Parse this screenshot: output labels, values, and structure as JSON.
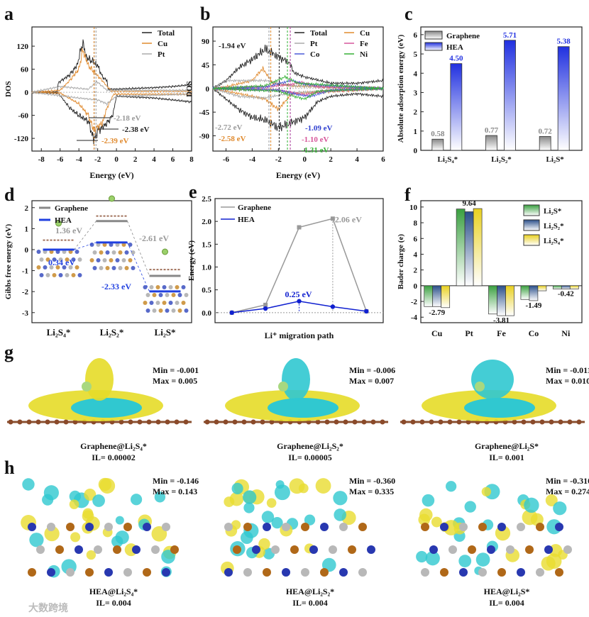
{
  "panel_letters": [
    "a",
    "b",
    "c",
    "d",
    "e",
    "f",
    "g",
    "h"
  ],
  "chart_data": [
    {
      "id": "a",
      "type": "line",
      "xlabel": "Energy (eV)",
      "ylabel": "DOS",
      "xlim": [
        -9,
        8
      ],
      "ylim": [
        -153,
        170
      ],
      "xticks": [
        -8,
        -6,
        -4,
        -2,
        0,
        2,
        4,
        6,
        8
      ],
      "yticks": [
        -120,
        -60,
        0,
        60,
        120
      ],
      "legend": [
        "Total",
        "Cu",
        "Pt"
      ],
      "legend_position": "top-right",
      "series": [
        {
          "name": "Total",
          "color": "#222222",
          "up": [
            [
              -9,
              0
            ],
            [
              -6.3,
              1
            ],
            [
              -6.2,
              25
            ],
            [
              -5,
              45
            ],
            [
              -4.2,
              70
            ],
            [
              -3.6,
              130
            ],
            [
              -3.2,
              90
            ],
            [
              -2.5,
              80
            ],
            [
              -2,
              70
            ],
            [
              -1.5,
              40
            ],
            [
              -1,
              30
            ],
            [
              -0.9,
              8
            ],
            [
              0,
              8
            ],
            [
              2,
              10
            ],
            [
              4,
              12
            ],
            [
              6,
              15
            ],
            [
              8,
              20
            ]
          ],
          "down": [
            [
              -9,
              0
            ],
            [
              -6.2,
              -2
            ],
            [
              -5,
              -40
            ],
            [
              -4,
              -60
            ],
            [
              -3,
              -75
            ],
            [
              -2.4,
              -125
            ],
            [
              -2,
              -100
            ],
            [
              -1,
              -80
            ],
            [
              -0.4,
              -60
            ],
            [
              0,
              -10
            ],
            [
              4,
              -15
            ],
            [
              8,
              -25
            ]
          ]
        },
        {
          "name": "Cu",
          "color": "#e08a2e",
          "up": [
            [
              -9,
              0
            ],
            [
              -6,
              5
            ],
            [
              -5,
              30
            ],
            [
              -4,
              60
            ],
            [
              -3.6,
              110
            ],
            [
              -3,
              70
            ],
            [
              -2.3,
              50
            ],
            [
              -1.5,
              30
            ],
            [
              -1,
              15
            ],
            [
              -0.5,
              3
            ],
            [
              8,
              3
            ]
          ],
          "down": [
            [
              -9,
              0
            ],
            [
              -6,
              -2
            ],
            [
              -4,
              -30
            ],
            [
              -3,
              -60
            ],
            [
              -2.4,
              -100
            ],
            [
              -1.5,
              -80
            ],
            [
              -1,
              -40
            ],
            [
              -0.3,
              -5
            ],
            [
              8,
              -5
            ]
          ]
        },
        {
          "name": "Pt",
          "color": "#aaaaaa",
          "up": [
            [
              -9,
              0
            ],
            [
              -6,
              15
            ],
            [
              -3,
              8
            ],
            [
              -2.1,
              28
            ],
            [
              -1,
              5
            ],
            [
              8,
              5
            ]
          ],
          "down": [
            [
              -9,
              0
            ],
            [
              -4,
              -15
            ],
            [
              -2,
              -20
            ],
            [
              -1,
              -30
            ],
            [
              0,
              -10
            ],
            [
              8,
              -5
            ]
          ]
        }
      ],
      "annotations": [
        {
          "text": "-2.18 eV",
          "x": -2.18,
          "color": "#999999"
        },
        {
          "text": "-2.38 eV",
          "x": -2.38,
          "color": "#222222"
        },
        {
          "text": "-2.39 eV",
          "x": -2.39,
          "color": "#e08a2e"
        }
      ]
    },
    {
      "id": "b",
      "type": "line",
      "xlabel": "Energy (eV)",
      "ylabel": "DOS",
      "xlim": [
        -7,
        6
      ],
      "ylim": [
        -119,
        117
      ],
      "xticks": [
        -6,
        -4,
        -2,
        0,
        2,
        4,
        6
      ],
      "yticks": [
        -90,
        -45,
        0,
        45,
        90
      ],
      "legend": [
        "Total",
        "Cu",
        "Pt",
        "Fe",
        "Co",
        "Ni"
      ],
      "legend_position": "top-right",
      "series": [
        {
          "name": "Total",
          "color": "#222222",
          "up": [
            [
              -7,
              0
            ],
            [
              -6,
              15
            ],
            [
              -5,
              40
            ],
            [
              -4,
              55
            ],
            [
              -3,
              75
            ],
            [
              -2,
              60
            ],
            [
              -1.2,
              50
            ],
            [
              -0.8,
              30
            ],
            [
              0,
              22
            ],
            [
              2,
              10
            ],
            [
              4,
              10
            ],
            [
              6,
              15
            ]
          ],
          "down": [
            [
              -7,
              0
            ],
            [
              -6,
              -20
            ],
            [
              -5,
              -40
            ],
            [
              -4,
              -55
            ],
            [
              -3,
              -60
            ],
            [
              -2,
              -75
            ],
            [
              -1,
              -65
            ],
            [
              0,
              -55
            ],
            [
              1,
              -25
            ],
            [
              2,
              -15
            ],
            [
              4,
              -10
            ],
            [
              6,
              -15
            ]
          ]
        },
        {
          "name": "Cu",
          "color": "#e08a2e",
          "up": [
            [
              -7,
              0
            ],
            [
              -6,
              3
            ],
            [
              -4,
              15
            ],
            [
              -3.2,
              38
            ],
            [
              -2.4,
              10
            ],
            [
              -1,
              5
            ],
            [
              6,
              0
            ]
          ],
          "down": [
            [
              -7,
              0
            ],
            [
              -5,
              -10
            ],
            [
              -3,
              -20
            ],
            [
              -2,
              -40
            ],
            [
              -1,
              -10
            ],
            [
              6,
              0
            ]
          ]
        },
        {
          "name": "Pt",
          "color": "#aaaaaa",
          "up": [
            [
              -7,
              0
            ],
            [
              -6,
              15
            ],
            [
              -3,
              15
            ],
            [
              -1,
              5
            ],
            [
              6,
              0
            ]
          ],
          "down": [
            [
              -7,
              0
            ],
            [
              -5,
              -15
            ],
            [
              -3,
              -18
            ],
            [
              -1,
              -8
            ],
            [
              6,
              0
            ]
          ]
        },
        {
          "name": "Fe",
          "color": "#d6569a",
          "up": [
            [
              -7,
              0
            ],
            [
              -3,
              3
            ],
            [
              -1,
              8
            ],
            [
              -0.3,
              12
            ],
            [
              1,
              3
            ],
            [
              6,
              0
            ]
          ],
          "down": [
            [
              -7,
              0
            ],
            [
              -2,
              -3
            ],
            [
              0,
              -12
            ],
            [
              1.5,
              -5
            ],
            [
              6,
              0
            ]
          ]
        },
        {
          "name": "Co",
          "color": "#4a5ad8",
          "up": [
            [
              -7,
              0
            ],
            [
              -3,
              3
            ],
            [
              -1,
              15
            ],
            [
              0,
              8
            ],
            [
              6,
              0
            ]
          ],
          "down": [
            [
              -7,
              0
            ],
            [
              -2,
              -3
            ],
            [
              -0.5,
              -12
            ],
            [
              0.5,
              -15
            ],
            [
              2,
              -3
            ],
            [
              6,
              0
            ]
          ]
        },
        {
          "name": "Ni",
          "color": "#35b035",
          "up": [
            [
              -7,
              0
            ],
            [
              -3,
              5
            ],
            [
              -1.5,
              22
            ],
            [
              -0.5,
              10
            ],
            [
              6,
              0
            ]
          ],
          "down": [
            [
              -7,
              0
            ],
            [
              -2,
              -5
            ],
            [
              -0.8,
              -15
            ],
            [
              0,
              -20
            ],
            [
              1,
              -5
            ],
            [
              6,
              0
            ]
          ]
        }
      ],
      "annotations": [
        {
          "text": "-1.94 eV",
          "x": -1.94,
          "color": "#222222"
        },
        {
          "text": "-2.72 eV",
          "x": -2.72,
          "color": "#999999"
        },
        {
          "text": "-2.58 eV",
          "x": -2.58,
          "color": "#e08a2e"
        },
        {
          "text": "-1.09 eV",
          "x": -1.09,
          "color": "#3040d0"
        },
        {
          "text": "-1.10 eV",
          "x": -1.1,
          "color": "#d6569a"
        },
        {
          "text": "-1.31 eV",
          "x": -1.31,
          "color": "#35b035"
        }
      ]
    },
    {
      "id": "c",
      "type": "bar",
      "ylabel": "Absolute adsorption energy (eV)",
      "ylim": [
        0,
        6.4
      ],
      "yticks": [
        0,
        1,
        2,
        3,
        4,
        5,
        6
      ],
      "categories": [
        "Li₂S₄*",
        "Li₂S₂*",
        "Li₂S*"
      ],
      "legend_position": "top-left",
      "series": [
        {
          "name": "Graphene",
          "color": "#888888",
          "values": [
            0.58,
            0.77,
            0.72
          ],
          "labels": [
            "0.58",
            "0.77",
            "0.72"
          ]
        },
        {
          "name": "HEA",
          "color": "#2030e0",
          "values": [
            4.5,
            5.71,
            5.38
          ],
          "labels": [
            "4.50",
            "5.71",
            "5.38"
          ]
        }
      ]
    },
    {
      "id": "d",
      "type": "line",
      "ylabel": "Gibbs free energy (eV)",
      "ylim": [
        -3.48,
        2.33
      ],
      "yticks": [
        -3,
        -2,
        -1,
        0,
        1,
        2
      ],
      "categories": [
        "Li₂S₄*",
        "Li₂S₂*",
        "Li₂S*"
      ],
      "legend_position": "top-left",
      "series": [
        {
          "name": "Graphene",
          "color": "#888888",
          "values": [
            0.0,
            1.36,
            -1.25
          ]
        },
        {
          "name": "HEA",
          "color": "#2040e0",
          "values": [
            0.0,
            0.34,
            -1.99
          ]
        },
        {
          "name": "reference",
          "color": "#a0705a",
          "values": [
            0.45,
            1.6,
            -0.95
          ]
        }
      ],
      "annotations": [
        {
          "text": "1.36 eV",
          "color": "#999999"
        },
        {
          "text": "0.34 eV",
          "color": "#2040e0"
        },
        {
          "text": "-2.61 eV",
          "color": "#999999"
        },
        {
          "text": "-2.33 eV",
          "color": "#2040e0"
        }
      ]
    },
    {
      "id": "e",
      "type": "line",
      "xlabel": "Li⁺ migration path",
      "ylabel": "Energy (eV)",
      "ylim": [
        -0.22,
        2.5
      ],
      "yticks": [
        0.0,
        0.5,
        1.0,
        1.5,
        2.0,
        2.5
      ],
      "ytick_labels": [
        "0.0",
        "0.5",
        "1.0",
        "1.5",
        "2.0",
        "2.5"
      ],
      "x": [
        1,
        2,
        3,
        4,
        5
      ],
      "legend_position": "top-left",
      "series": [
        {
          "name": "Graphene",
          "color": "#999999",
          "values": [
            0,
            0.17,
            1.87,
            2.06,
            0.03
          ]
        },
        {
          "name": "HEA",
          "color": "#1020d0",
          "values": [
            0,
            0.09,
            0.25,
            0.13,
            0.03
          ]
        }
      ],
      "annotations": [
        {
          "text": "2.06 eV",
          "color": "#999999"
        },
        {
          "text": "0.25 eV",
          "color": "#1020d0"
        }
      ]
    },
    {
      "id": "f",
      "type": "bar",
      "ylabel": "Bader charge (e)",
      "ylim": [
        -4.7,
        10.8
      ],
      "yticks": [
        -4,
        -2,
        0,
        2,
        4,
        6,
        8,
        10
      ],
      "categories": [
        "Cu",
        "Pt",
        "Fe",
        "Co",
        "Ni"
      ],
      "legend_position": "top-right",
      "series": [
        {
          "name": "Li₂S*",
          "color": "#3aa040",
          "values": [
            -2.65,
            9.75,
            -3.6,
            -1.75,
            -0.42
          ]
        },
        {
          "name": "Li₂S₂*",
          "color": "#2a4f8a",
          "values": [
            -2.65,
            9.4,
            -3.81,
            -1.9,
            -0.42
          ]
        },
        {
          "name": "Li₂S₄*",
          "color": "#e8d020",
          "values": [
            -2.79,
            9.8,
            -3.81,
            -0.65,
            -0.42
          ]
        }
      ],
      "value_labels": [
        "-2.79",
        "9.64",
        "-3.81",
        "-1.49",
        "-0.42"
      ]
    }
  ],
  "panel_g": [
    {
      "min": "Min = -0.001",
      "max": "Max = 0.005",
      "caption": "Graphene@Li₂S₄*",
      "il": "IL= 0.00002"
    },
    {
      "min": "Min = -0.006",
      "max": "Max = 0.007",
      "caption": "Graphene@Li₂S₂*",
      "il": "IL= 0.00005"
    },
    {
      "min": "Min = -0.011",
      "max": "Max = 0.010",
      "caption": "Graphene@Li₂S*",
      "il": "IL= 0.001"
    }
  ],
  "panel_h": [
    {
      "min": "Min = -0.146",
      "max": "Max = 0.143",
      "caption": "HEA@Li₂S₄*",
      "il": "IL= 0.004"
    },
    {
      "min": "Min = -0.360",
      "max": "Max = 0.335",
      "caption": "HEA@Li₂S₂*",
      "il": "IL= 0.004"
    },
    {
      "min": "Min = -0.310",
      "max": "Max = 0.274",
      "caption": "HEA@Li₂S*",
      "il": "IL= 0.004"
    }
  ],
  "watermark": "大数跨境"
}
